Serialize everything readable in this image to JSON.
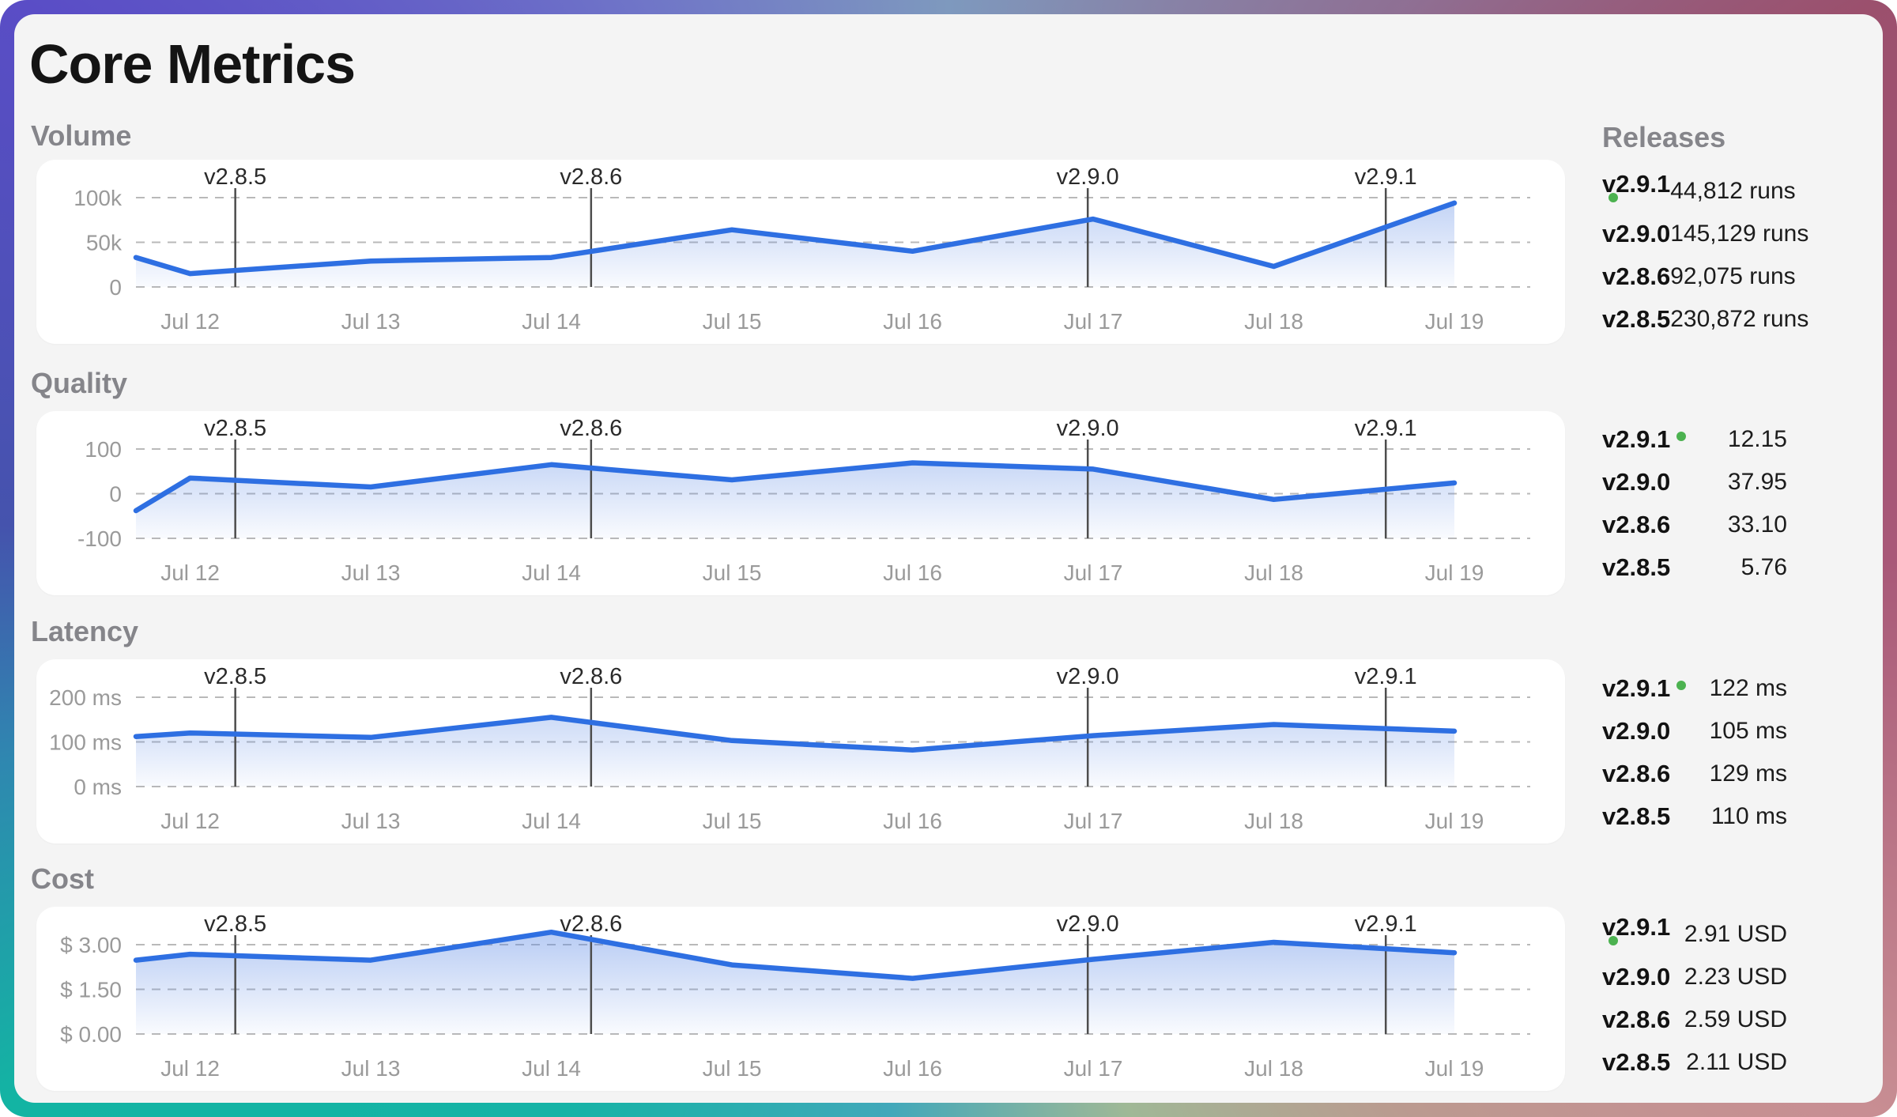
{
  "title": "Core Metrics",
  "releases_panel": {
    "header": "Releases"
  },
  "colors": {
    "accent_line": "#2e6fe2",
    "area_fill_top": "rgba(93,138,229,0.45)",
    "area_fill_bottom": "rgba(93,138,229,0.02)",
    "grid": "#b9b9b9",
    "axis_text": "#9a9a9a",
    "marker_line": "#4d4d4d",
    "marker_text": "#2a2a2a",
    "current_dot": "#4cb250",
    "panel_bg": "#f4f4f4",
    "card_bg": "#ffffff",
    "title_text": "#141414",
    "section_label_text": "#85858a"
  },
  "x_days": [
    11.7,
    12,
    13,
    14,
    15,
    16,
    17,
    18,
    19
  ],
  "x_tick_labels": [
    {
      "day": 12,
      "label": "Jul 12"
    },
    {
      "day": 13,
      "label": "Jul 13"
    },
    {
      "day": 14,
      "label": "Jul 14"
    },
    {
      "day": 15,
      "label": "Jul 15"
    },
    {
      "day": 16,
      "label": "Jul 16"
    },
    {
      "day": 17,
      "label": "Jul 17"
    },
    {
      "day": 18,
      "label": "Jul 18"
    },
    {
      "day": 19,
      "label": "Jul 19"
    }
  ],
  "release_markers": [
    {
      "label": "v2.8.5",
      "day": 12.25
    },
    {
      "label": "v2.8.6",
      "day": 14.22
    },
    {
      "label": "v2.9.0",
      "day": 16.97
    },
    {
      "label": "v2.9.1",
      "day": 18.62
    }
  ],
  "chart_data": [
    {
      "type": "area",
      "label": "Volume",
      "ylim": [
        0,
        100000
      ],
      "y_ticks": [
        {
          "value": 100000,
          "label": "100k"
        },
        {
          "value": 50000,
          "label": "50k"
        },
        {
          "value": 0,
          "label": "0"
        }
      ],
      "values": [
        33000,
        15000,
        29000,
        33000,
        64000,
        40000,
        76000,
        23000,
        94000
      ],
      "releases": [
        {
          "version": "v2.9.1",
          "current": true,
          "value": "44,812 runs"
        },
        {
          "version": "v2.9.0",
          "current": false,
          "value": "145,129 runs"
        },
        {
          "version": "v2.8.6",
          "current": false,
          "value": "92,075 runs"
        },
        {
          "version": "v2.8.5",
          "current": false,
          "value": "230,872 runs"
        }
      ]
    },
    {
      "type": "area",
      "label": "Quality",
      "ylim": [
        -100,
        100
      ],
      "y_ticks": [
        {
          "value": 100,
          "label": "100"
        },
        {
          "value": 0,
          "label": "0"
        },
        {
          "value": -100,
          "label": "-100"
        }
      ],
      "values": [
        -38,
        35,
        15,
        65,
        31,
        69,
        55,
        -13,
        24
      ],
      "releases": [
        {
          "version": "v2.9.1",
          "current": true,
          "value": "12.15"
        },
        {
          "version": "v2.9.0",
          "current": false,
          "value": "37.95"
        },
        {
          "version": "v2.8.6",
          "current": false,
          "value": "33.10"
        },
        {
          "version": "v2.8.5",
          "current": false,
          "value": "5.76"
        }
      ]
    },
    {
      "type": "area",
      "label": "Latency",
      "ylim": [
        0,
        200
      ],
      "y_ticks": [
        {
          "value": 200,
          "label": "200 ms"
        },
        {
          "value": 100,
          "label": "100 ms"
        },
        {
          "value": 0,
          "label": "0 ms"
        }
      ],
      "values": [
        112,
        120,
        110,
        155,
        103,
        82,
        114,
        139,
        124
      ],
      "releases": [
        {
          "version": "v2.9.1",
          "current": true,
          "value": "122 ms"
        },
        {
          "version": "v2.9.0",
          "current": false,
          "value": "105 ms"
        },
        {
          "version": "v2.8.6",
          "current": false,
          "value": "129 ms"
        },
        {
          "version": "v2.8.5",
          "current": false,
          "value": "110 ms"
        }
      ]
    },
    {
      "type": "area",
      "label": "Cost",
      "ylim": [
        0,
        3
      ],
      "y_ticks": [
        {
          "value": 3,
          "label": "$ 3.00"
        },
        {
          "value": 1.5,
          "label": "$ 1.50"
        },
        {
          "value": 0,
          "label": "$ 0.00"
        }
      ],
      "values": [
        2.48,
        2.68,
        2.48,
        3.42,
        2.32,
        1.87,
        2.51,
        3.08,
        2.73
      ],
      "releases": [
        {
          "version": "v2.9.1",
          "current": true,
          "value": "2.91 USD"
        },
        {
          "version": "v2.9.0",
          "current": false,
          "value": "2.23 USD"
        },
        {
          "version": "v2.8.6",
          "current": false,
          "value": "2.59 USD"
        },
        {
          "version": "v2.8.5",
          "current": false,
          "value": "2.11 USD"
        }
      ]
    }
  ]
}
